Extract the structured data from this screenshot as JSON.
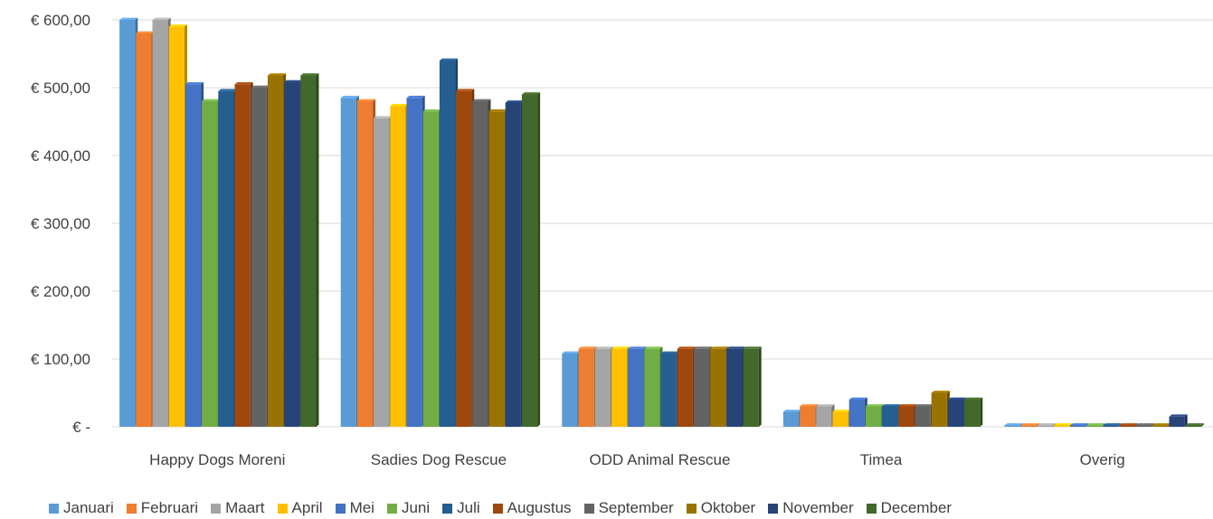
{
  "chart_data": {
    "type": "bar",
    "style": "3d-clustered-column",
    "categories": [
      "Happy Dogs Moreni",
      "Sadies Dog Rescue",
      "ODD Animal Rescue",
      "Timea",
      "Overig"
    ],
    "ylim": [
      0,
      600
    ],
    "y_ticks": [
      {
        "value": 0,
        "label": "€ -"
      },
      {
        "value": 100,
        "label": "€ 100,00"
      },
      {
        "value": 200,
        "label": "€ 200,00"
      },
      {
        "value": 300,
        "label": "€ 300,00"
      },
      {
        "value": 400,
        "label": "€ 400,00"
      },
      {
        "value": 500,
        "label": "€ 500,00"
      },
      {
        "value": 600,
        "label": "€ 600,00"
      }
    ],
    "grid": true,
    "legend_position": "bottom",
    "series": [
      {
        "name": "Januari",
        "color": "#5B9BD5",
        "values": [
          600,
          485,
          108,
          22,
          2
        ]
      },
      {
        "name": "Februari",
        "color": "#ED7D31",
        "values": [
          580,
          480,
          115,
          30,
          2
        ]
      },
      {
        "name": "Maart",
        "color": "#A5A5A5",
        "values": [
          600,
          455,
          115,
          30,
          2
        ]
      },
      {
        "name": "April",
        "color": "#FFC000",
        "values": [
          590,
          473,
          115,
          22,
          2
        ]
      },
      {
        "name": "Mei",
        "color": "#4472C4",
        "values": [
          505,
          485,
          115,
          40,
          2
        ]
      },
      {
        "name": "Juni",
        "color": "#70AD47",
        "values": [
          480,
          465,
          115,
          30,
          2
        ]
      },
      {
        "name": "Juli",
        "color": "#255E91",
        "values": [
          495,
          540,
          108,
          30,
          2
        ]
      },
      {
        "name": "Augustus",
        "color": "#9E480E",
        "values": [
          505,
          495,
          115,
          30,
          2
        ]
      },
      {
        "name": "September",
        "color": "#636363",
        "values": [
          500,
          480,
          115,
          30,
          2
        ]
      },
      {
        "name": "Oktober",
        "color": "#997300",
        "values": [
          518,
          465,
          115,
          50,
          2
        ]
      },
      {
        "name": "November",
        "color": "#264478",
        "values": [
          508,
          478,
          115,
          40,
          15
        ]
      },
      {
        "name": "December",
        "color": "#43682B",
        "values": [
          518,
          490,
          115,
          40,
          2
        ]
      }
    ]
  }
}
